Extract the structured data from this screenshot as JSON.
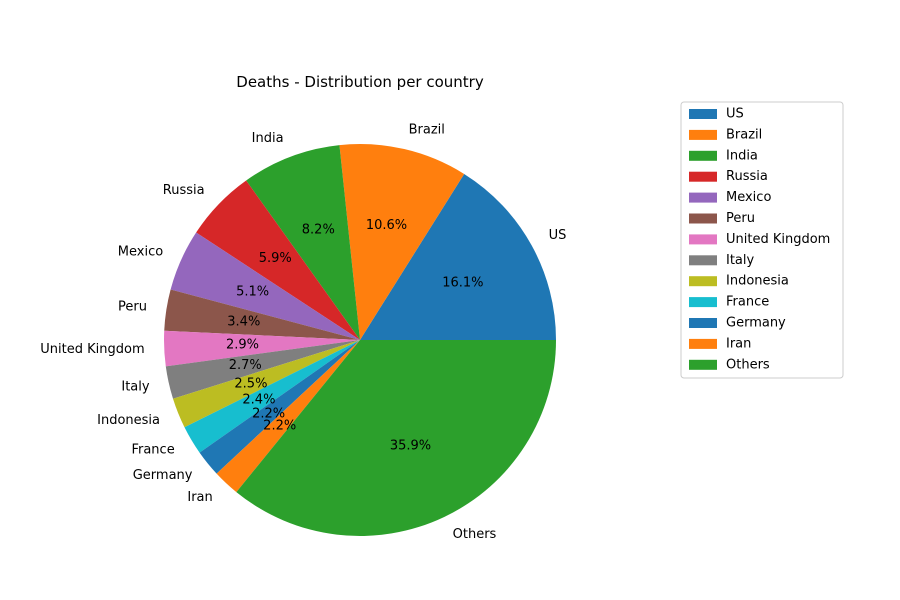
{
  "chart_data": {
    "type": "pie",
    "title": "Deaths - Distribution per country",
    "categories": [
      "US",
      "Brazil",
      "India",
      "Russia",
      "Mexico",
      "Peru",
      "United Kingdom",
      "Italy",
      "Indonesia",
      "France",
      "Germany",
      "Iran",
      "Others"
    ],
    "values": [
      16.1,
      10.6,
      8.2,
      5.9,
      5.1,
      3.4,
      2.9,
      2.7,
      2.5,
      2.4,
      2.2,
      2.2,
      35.9
    ],
    "value_labels": [
      "16.1%",
      "10.6%",
      "8.2%",
      "5.9%",
      "5.1%",
      "3.4%",
      "2.9%",
      "2.7%",
      "2.5%",
      "2.4%",
      "2.2%",
      "2.2%",
      "35.9%"
    ],
    "colors": [
      "#1f77b4",
      "#ff7f0e",
      "#2ca02c",
      "#d62728",
      "#9467bd",
      "#8c564b",
      "#e377c2",
      "#7f7f7f",
      "#bcbd22",
      "#17becf",
      "#1f77b4",
      "#ff7f0e",
      "#2ca02c"
    ],
    "legend": {
      "placement": "right",
      "entries": [
        "US",
        "Brazil",
        "India",
        "Russia",
        "Mexico",
        "Peru",
        "United Kingdom",
        "Italy",
        "Indonesia",
        "France",
        "Germany",
        "Iran",
        "Others"
      ]
    }
  }
}
